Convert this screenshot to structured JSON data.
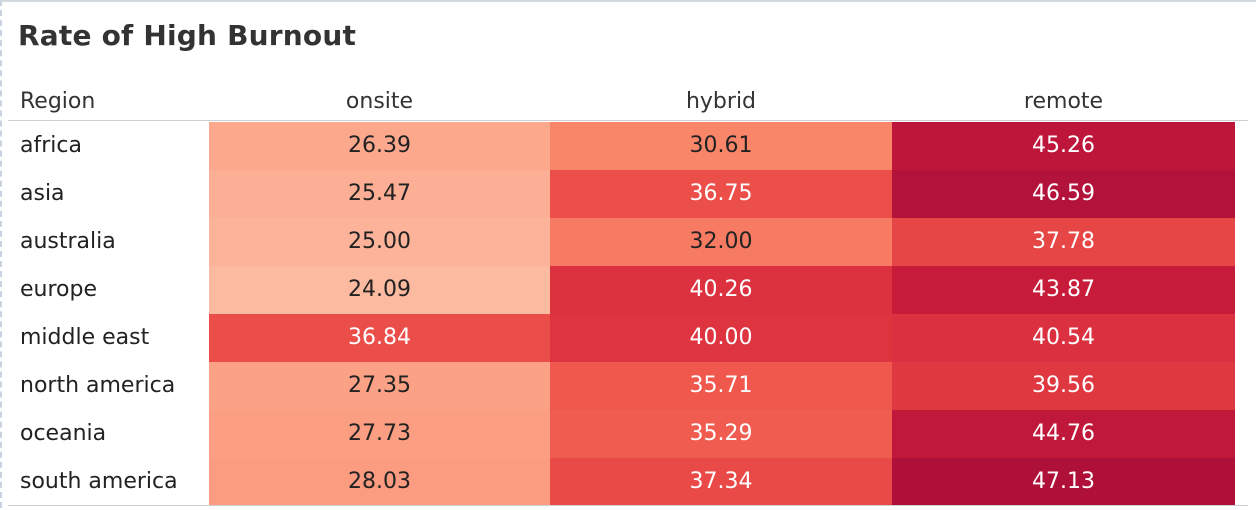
{
  "chart_data": {
    "type": "heatmap",
    "title": "Rate of High Burnout",
    "row_header": "Region",
    "columns": [
      "onsite",
      "hybrid",
      "remote"
    ],
    "rows": [
      {
        "label": "africa",
        "values": [
          "26.39",
          "30.61",
          "45.26"
        ]
      },
      {
        "label": "asia",
        "values": [
          "25.47",
          "36.75",
          "46.59"
        ]
      },
      {
        "label": "australia",
        "values": [
          "25.00",
          "32.00",
          "37.78"
        ]
      },
      {
        "label": "europe",
        "values": [
          "24.09",
          "40.26",
          "43.87"
        ]
      },
      {
        "label": "middle east",
        "values": [
          "36.84",
          "40.00",
          "40.54"
        ]
      },
      {
        "label": "north america",
        "values": [
          "27.35",
          "35.71",
          "39.56"
        ]
      },
      {
        "label": "oceania",
        "values": [
          "27.73",
          "35.29",
          "44.76"
        ]
      },
      {
        "label": "south america",
        "values": [
          "28.03",
          "37.34",
          "47.13"
        ]
      }
    ],
    "color_scale": {
      "low": "#fcbba1",
      "mid": "#ef3b2c",
      "high": "#a50f3a",
      "range": [
        24.09,
        47.13
      ]
    }
  }
}
